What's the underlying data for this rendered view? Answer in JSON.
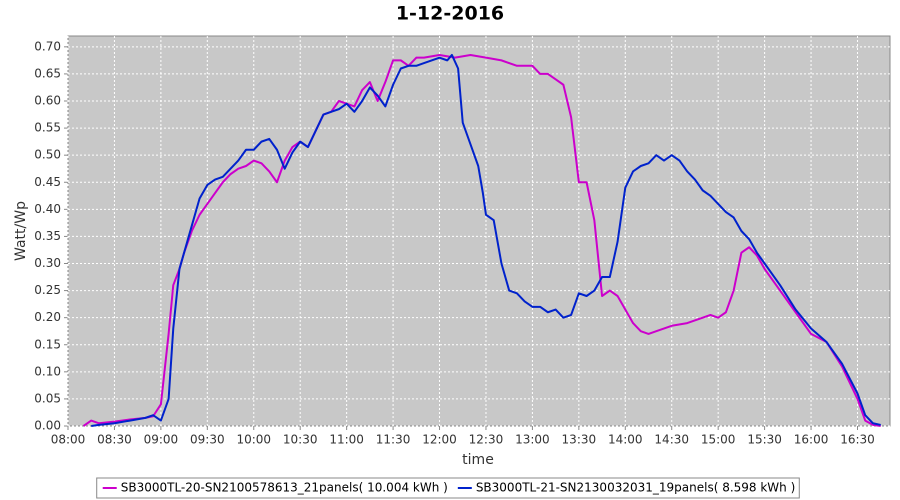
{
  "chart_data": {
    "type": "line",
    "title": "1-12-2016",
    "x_label": "time",
    "y_label": "Watt/Wp",
    "xlim": [
      480,
      1011
    ],
    "ylim": [
      0,
      0.72
    ],
    "grid": true,
    "legend": "bottom",
    "xticks": [
      {
        "value": 480,
        "label": "08:00"
      },
      {
        "value": 510,
        "label": "08:30"
      },
      {
        "value": 540,
        "label": "09:00"
      },
      {
        "value": 570,
        "label": "09:30"
      },
      {
        "value": 600,
        "label": "10:00"
      },
      {
        "value": 630,
        "label": "10:30"
      },
      {
        "value": 660,
        "label": "11:00"
      },
      {
        "value": 690,
        "label": "11:30"
      },
      {
        "value": 720,
        "label": "12:00"
      },
      {
        "value": 750,
        "label": "12:30"
      },
      {
        "value": 780,
        "label": "13:00"
      },
      {
        "value": 810,
        "label": "13:30"
      },
      {
        "value": 840,
        "label": "14:00"
      },
      {
        "value": 870,
        "label": "14:30"
      },
      {
        "value": 900,
        "label": "15:00"
      },
      {
        "value": 930,
        "label": "15:30"
      },
      {
        "value": 960,
        "label": "16:00"
      },
      {
        "value": 990,
        "label": "16:30"
      }
    ],
    "yticks": [
      {
        "value": 0,
        "label": "0.00"
      },
      {
        "value": 0.05,
        "label": "0.05"
      },
      {
        "value": 0.1,
        "label": "0.10"
      },
      {
        "value": 0.15,
        "label": "0.15"
      },
      {
        "value": 0.2,
        "label": "0.20"
      },
      {
        "value": 0.25,
        "label": "0.25"
      },
      {
        "value": 0.3,
        "label": "0.30"
      },
      {
        "value": 0.35,
        "label": "0.35"
      },
      {
        "value": 0.4,
        "label": "0.40"
      },
      {
        "value": 0.45,
        "label": "0.45"
      },
      {
        "value": 0.5,
        "label": "0.50"
      },
      {
        "value": 0.55,
        "label": "0.55"
      },
      {
        "value": 0.6,
        "label": "0.60"
      },
      {
        "value": 0.65,
        "label": "0.65"
      },
      {
        "value": 0.7,
        "label": "0.70"
      }
    ],
    "series": [
      {
        "name": "SB3000TL-20-SN2100578613_21panels( 10.004 kWh )",
        "color": "#cc00cc",
        "x": [
          490,
          495,
          500,
          510,
          520,
          530,
          535,
          540,
          545,
          548,
          552,
          555,
          560,
          565,
          570,
          575,
          580,
          585,
          590,
          595,
          600,
          605,
          610,
          615,
          620,
          625,
          630,
          635,
          640,
          645,
          650,
          655,
          660,
          665,
          670,
          675,
          680,
          685,
          690,
          695,
          700,
          705,
          710,
          720,
          730,
          740,
          750,
          760,
          770,
          780,
          785,
          790,
          795,
          800,
          805,
          810,
          815,
          820,
          825,
          830,
          835,
          840,
          845,
          850,
          855,
          860,
          870,
          880,
          890,
          895,
          900,
          905,
          910,
          915,
          920,
          925,
          930,
          940,
          950,
          960,
          970,
          980,
          990,
          995,
          1000,
          1005
        ],
        "values": [
          0,
          0.01,
          0.005,
          0.008,
          0.012,
          0.015,
          0.018,
          0.04,
          0.17,
          0.26,
          0.29,
          0.32,
          0.36,
          0.39,
          0.41,
          0.43,
          0.45,
          0.465,
          0.475,
          0.48,
          0.49,
          0.485,
          0.47,
          0.45,
          0.49,
          0.515,
          0.525,
          0.515,
          0.545,
          0.575,
          0.58,
          0.6,
          0.595,
          0.59,
          0.62,
          0.635,
          0.6,
          0.635,
          0.675,
          0.675,
          0.665,
          0.68,
          0.68,
          0.685,
          0.68,
          0.685,
          0.68,
          0.675,
          0.665,
          0.665,
          0.65,
          0.65,
          0.64,
          0.63,
          0.57,
          0.45,
          0.45,
          0.38,
          0.24,
          0.25,
          0.24,
          0.215,
          0.19,
          0.175,
          0.17,
          0.175,
          0.185,
          0.19,
          0.2,
          0.205,
          0.2,
          0.21,
          0.25,
          0.32,
          0.33,
          0.315,
          0.29,
          0.25,
          0.21,
          0.17,
          0.155,
          0.11,
          0.05,
          0.01,
          0.002,
          0
        ]
      },
      {
        "name": "SB3000TL-21-SN2130032031_19panels( 8.598 kWh )",
        "color": "#0022cc",
        "x": [
          495,
          500,
          510,
          520,
          530,
          535,
          540,
          545,
          548,
          552,
          555,
          560,
          565,
          570,
          575,
          580,
          585,
          590,
          595,
          600,
          605,
          610,
          615,
          620,
          625,
          630,
          635,
          640,
          645,
          650,
          655,
          660,
          665,
          670,
          675,
          680,
          685,
          690,
          695,
          700,
          705,
          710,
          720,
          725,
          728,
          732,
          735,
          740,
          745,
          748,
          750,
          755,
          760,
          765,
          770,
          775,
          780,
          785,
          790,
          795,
          800,
          805,
          810,
          815,
          820,
          825,
          830,
          835,
          840,
          845,
          850,
          855,
          860,
          865,
          870,
          875,
          880,
          885,
          890,
          895,
          900,
          905,
          910,
          915,
          920,
          925,
          930,
          940,
          950,
          960,
          970,
          980,
          990,
          995,
          1000,
          1005
        ],
        "values": [
          0,
          0.002,
          0.005,
          0.01,
          0.015,
          0.02,
          0.01,
          0.05,
          0.18,
          0.29,
          0.32,
          0.37,
          0.42,
          0.445,
          0.455,
          0.46,
          0.475,
          0.49,
          0.51,
          0.51,
          0.525,
          0.53,
          0.51,
          0.475,
          0.505,
          0.525,
          0.515,
          0.545,
          0.575,
          0.58,
          0.585,
          0.595,
          0.58,
          0.6,
          0.625,
          0.61,
          0.59,
          0.63,
          0.66,
          0.665,
          0.665,
          0.67,
          0.68,
          0.675,
          0.685,
          0.66,
          0.56,
          0.52,
          0.48,
          0.43,
          0.39,
          0.38,
          0.3,
          0.25,
          0.245,
          0.23,
          0.22,
          0.22,
          0.21,
          0.215,
          0.2,
          0.205,
          0.245,
          0.24,
          0.25,
          0.275,
          0.275,
          0.34,
          0.44,
          0.47,
          0.48,
          0.485,
          0.5,
          0.49,
          0.5,
          0.49,
          0.47,
          0.455,
          0.435,
          0.425,
          0.41,
          0.395,
          0.385,
          0.36,
          0.345,
          0.32,
          0.3,
          0.26,
          0.215,
          0.18,
          0.155,
          0.115,
          0.06,
          0.02,
          0.005,
          0.002
        ]
      }
    ]
  }
}
